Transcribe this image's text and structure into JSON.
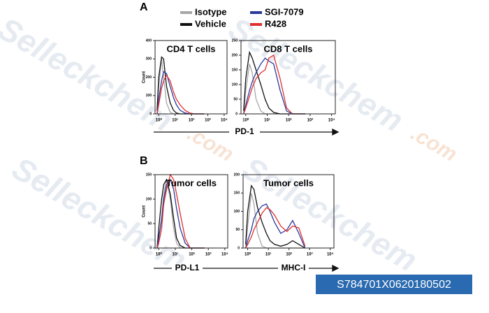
{
  "figure": {
    "panel_labels": [
      "A",
      "B"
    ],
    "watermark": "Selleckchem",
    "watermark_suffix": ".com",
    "image_id": "S784701X0620180502"
  },
  "chart_data": [
    {
      "type": "line",
      "title": "CD4 T cells",
      "ylabel": "Count",
      "xlabel": "PD-1",
      "log_x": true,
      "xlim": [
        0.6,
        15000
      ],
      "xticks": [
        {
          "value": 1,
          "label": "10⁰"
        },
        {
          "value": 10,
          "label": "10¹"
        },
        {
          "value": 100,
          "label": "10²"
        },
        {
          "value": 1000,
          "label": "10³"
        },
        {
          "value": 10000,
          "label": "10⁴"
        }
      ],
      "ylim": [
        0,
        400
      ],
      "yticks": [
        0,
        100,
        200,
        300,
        400
      ],
      "x": [
        0.8,
        1,
        1.5,
        2,
        3,
        5,
        8,
        12,
        20,
        40,
        80,
        150,
        300,
        600
      ],
      "series": [
        {
          "name": "Isotype",
          "color": "#a8a8a8",
          "values": [
            0,
            150,
            300,
            200,
            60,
            10,
            0,
            0,
            0,
            0,
            0,
            0,
            0,
            0
          ]
        },
        {
          "name": "Vehicle",
          "color": "#111111",
          "values": [
            20,
            200,
            310,
            300,
            150,
            60,
            20,
            5,
            0,
            0,
            0,
            0,
            0,
            0
          ]
        },
        {
          "name": "SGI-7079",
          "color": "#2b3a9a",
          "values": [
            0,
            80,
            180,
            230,
            220,
            150,
            90,
            50,
            20,
            5,
            0,
            0,
            0,
            0
          ]
        },
        {
          "name": "R428",
          "color": "#e03030",
          "values": [
            0,
            50,
            140,
            180,
            210,
            180,
            120,
            80,
            50,
            20,
            5,
            0,
            0,
            0
          ]
        }
      ]
    },
    {
      "type": "line",
      "title": "CD8 T cells",
      "log_x": true,
      "xlim": [
        0.6,
        15000
      ],
      "xticks": [
        {
          "value": 1,
          "label": "10⁰"
        },
        {
          "value": 10,
          "label": "10¹"
        },
        {
          "value": 100,
          "label": "10²"
        },
        {
          "value": 1000,
          "label": "10³"
        },
        {
          "value": 10000,
          "label": "10⁴"
        }
      ],
      "ylim": [
        0,
        250
      ],
      "yticks": [
        0,
        50,
        100,
        150,
        200,
        250
      ],
      "x": [
        0.8,
        1,
        1.5,
        2,
        3,
        5,
        8,
        12,
        20,
        40,
        80,
        150,
        300,
        600
      ],
      "series": [
        {
          "name": "Isotype",
          "color": "#a8a8a8",
          "values": [
            0,
            80,
            170,
            140,
            50,
            10,
            0,
            0,
            0,
            0,
            0,
            0,
            0,
            0
          ]
        },
        {
          "name": "Vehicle",
          "color": "#111111",
          "values": [
            10,
            120,
            210,
            190,
            150,
            100,
            50,
            20,
            5,
            0,
            0,
            0,
            0,
            0
          ]
        },
        {
          "name": "SGI-7079",
          "color": "#2b3a9a",
          "values": [
            0,
            30,
            80,
            110,
            140,
            170,
            190,
            180,
            170,
            80,
            10,
            0,
            0,
            0
          ]
        },
        {
          "name": "R428",
          "color": "#e03030",
          "values": [
            0,
            20,
            60,
            90,
            120,
            140,
            150,
            190,
            200,
            120,
            20,
            0,
            0,
            0
          ]
        }
      ]
    },
    {
      "type": "line",
      "title": "Tumor cells",
      "ylabel": "Count",
      "xlabel": "PD-L1",
      "log_x": true,
      "xlim": [
        0.6,
        15000
      ],
      "xticks": [
        {
          "value": 1,
          "label": "10⁰"
        },
        {
          "value": 10,
          "label": "10¹"
        },
        {
          "value": 100,
          "label": "10²"
        },
        {
          "value": 1000,
          "label": "10³"
        },
        {
          "value": 10000,
          "label": "10⁴"
        }
      ],
      "ylim": [
        0,
        150
      ],
      "yticks": [
        0,
        50,
        100,
        150
      ],
      "x": [
        0.8,
        1,
        1.5,
        2,
        3,
        5,
        8,
        12,
        20,
        40,
        80,
        150,
        300,
        600
      ],
      "series": [
        {
          "name": "Isotype",
          "color": "#a8a8a8",
          "values": [
            0,
            20,
            60,
            110,
            140,
            100,
            40,
            10,
            0,
            0,
            0,
            0,
            0,
            0
          ]
        },
        {
          "name": "Vehicle",
          "color": "#111111",
          "values": [
            0,
            40,
            100,
            130,
            140,
            110,
            60,
            20,
            5,
            0,
            0,
            0,
            0,
            0
          ]
        },
        {
          "name": "SGI-7079",
          "color": "#2b3a9a",
          "values": [
            0,
            20,
            60,
            100,
            130,
            140,
            120,
            80,
            40,
            10,
            0,
            0,
            0,
            0
          ]
        },
        {
          "name": "R428",
          "color": "#e03030",
          "values": [
            0,
            10,
            40,
            90,
            120,
            150,
            140,
            110,
            70,
            20,
            0,
            0,
            0,
            0
          ]
        }
      ]
    },
    {
      "type": "line",
      "title": "Tumor cells",
      "xlabel": "MHC-I",
      "log_x": true,
      "xlim": [
        0.6,
        15000
      ],
      "xticks": [
        {
          "value": 1,
          "label": "10⁰"
        },
        {
          "value": 10,
          "label": "10¹"
        },
        {
          "value": 100,
          "label": "10²"
        },
        {
          "value": 1000,
          "label": "10³"
        },
        {
          "value": 10000,
          "label": "10⁴"
        }
      ],
      "ylim": [
        0,
        200
      ],
      "yticks": [
        0,
        50,
        100,
        150,
        200
      ],
      "x": [
        0.8,
        1,
        1.5,
        2,
        3,
        5,
        8,
        12,
        20,
        40,
        80,
        150,
        300,
        600
      ],
      "series": [
        {
          "name": "Isotype",
          "color": "#a8a8a8",
          "values": [
            0,
            60,
            150,
            120,
            40,
            5,
            0,
            0,
            0,
            0,
            0,
            0,
            0,
            0
          ]
        },
        {
          "name": "Vehicle",
          "color": "#111111",
          "values": [
            10,
            100,
            170,
            160,
            110,
            70,
            40,
            20,
            10,
            5,
            10,
            20,
            10,
            0
          ]
        },
        {
          "name": "SGI-7079",
          "color": "#2b3a9a",
          "values": [
            0,
            20,
            50,
            80,
            100,
            115,
            120,
            100,
            70,
            40,
            50,
            75,
            40,
            0
          ]
        },
        {
          "name": "R428",
          "color": "#e03030",
          "values": [
            0,
            10,
            30,
            50,
            70,
            95,
            110,
            105,
            90,
            60,
            45,
            60,
            55,
            5
          ]
        }
      ]
    }
  ]
}
